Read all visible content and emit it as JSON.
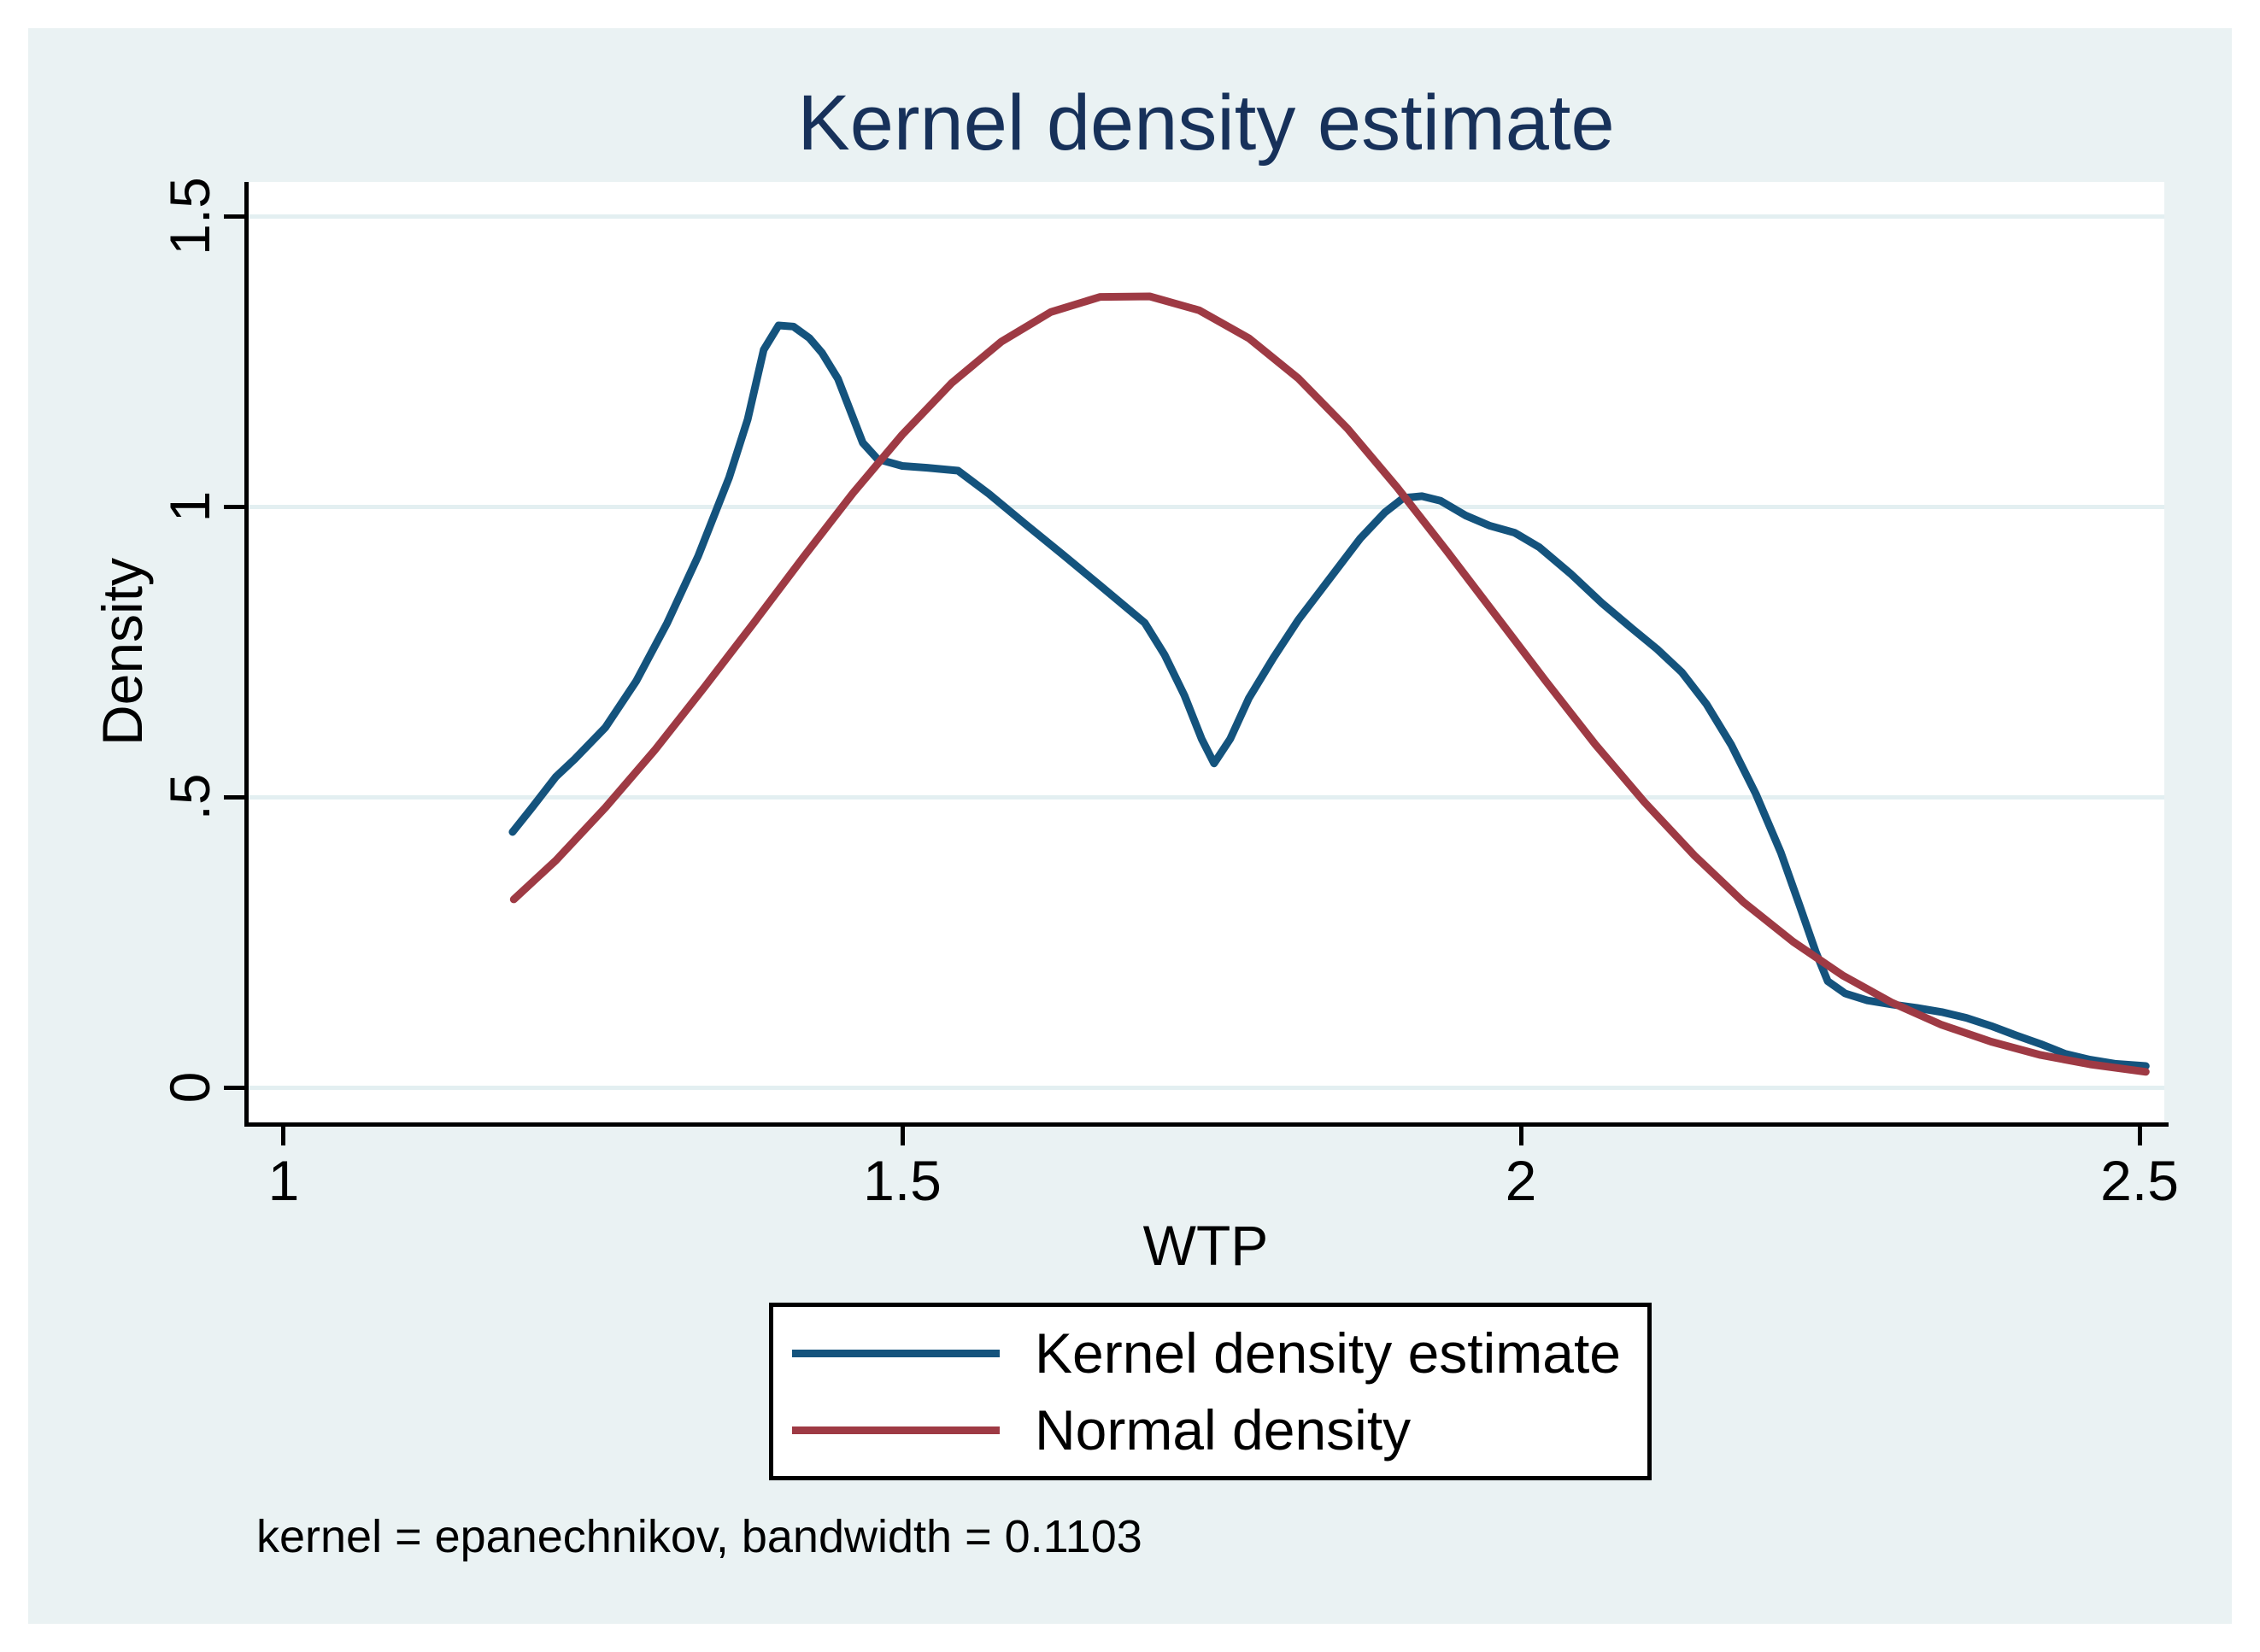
{
  "figure": {
    "title": "Kernel density estimate",
    "note": "kernel = epanechnikov, bandwidth = 0.1103",
    "colors": {
      "figure_background": "#eaf2f3",
      "plot_background": "#ffffff",
      "gridline": "#e3eff1",
      "axis": "#000000",
      "title_text": "#17315a",
      "kernel_line": "#14537d",
      "normal_line": "#9e3a44",
      "legend_border": "#000000",
      "legend_background": "#ffffff"
    }
  },
  "chart_data": {
    "type": "line",
    "title": "Kernel density estimate",
    "xlabel": "WTP",
    "ylabel": "Density",
    "xlim": [
      0.971,
      2.52
    ],
    "ylim": [
      -0.06,
      1.559
    ],
    "x_ticks": [
      1,
      1.5,
      2,
      2.5
    ],
    "x_tick_labels": [
      "1",
      "1.5",
      "2",
      "2.5"
    ],
    "y_ticks": [
      0,
      0.5,
      1,
      1.5
    ],
    "y_tick_labels": [
      "0",
      ".5",
      "1",
      "1.5"
    ],
    "grid": "horizontal gridlines at y ticks",
    "legend_position": "below plot, boxed",
    "note": "kernel = epanechnikov, bandwidth = 0.1103",
    "series": [
      {
        "name": "Kernel density estimate",
        "color": "#14537d",
        "points": [
          [
            1.185,
            0.44
          ],
          [
            1.2,
            0.48
          ],
          [
            1.22,
            0.535
          ],
          [
            1.235,
            0.565
          ],
          [
            1.26,
            0.62
          ],
          [
            1.285,
            0.7
          ],
          [
            1.31,
            0.8
          ],
          [
            1.335,
            0.915
          ],
          [
            1.36,
            1.05
          ],
          [
            1.375,
            1.15
          ],
          [
            1.388,
            1.27
          ],
          [
            1.4,
            1.312
          ],
          [
            1.412,
            1.31
          ],
          [
            1.425,
            1.29
          ],
          [
            1.435,
            1.265
          ],
          [
            1.448,
            1.22
          ],
          [
            1.458,
            1.165
          ],
          [
            1.468,
            1.11
          ],
          [
            1.48,
            1.082
          ],
          [
            1.5,
            1.07
          ],
          [
            1.52,
            1.067
          ],
          [
            1.545,
            1.062
          ],
          [
            1.57,
            1.022
          ],
          [
            1.6,
            0.969
          ],
          [
            1.63,
            0.917
          ],
          [
            1.66,
            0.864
          ],
          [
            1.696,
            0.8
          ],
          [
            1.712,
            0.745
          ],
          [
            1.728,
            0.675
          ],
          [
            1.742,
            0.6
          ],
          [
            1.752,
            0.558
          ],
          [
            1.765,
            0.6
          ],
          [
            1.78,
            0.67
          ],
          [
            1.8,
            0.74
          ],
          [
            1.82,
            0.805
          ],
          [
            1.845,
            0.875
          ],
          [
            1.87,
            0.945
          ],
          [
            1.89,
            0.99
          ],
          [
            1.905,
            1.015
          ],
          [
            1.92,
            1.018
          ],
          [
            1.935,
            1.01
          ],
          [
            1.955,
            0.985
          ],
          [
            1.975,
            0.967
          ],
          [
            1.995,
            0.955
          ],
          [
            2.015,
            0.93
          ],
          [
            2.04,
            0.885
          ],
          [
            2.065,
            0.835
          ],
          [
            2.09,
            0.79
          ],
          [
            2.11,
            0.755
          ],
          [
            2.13,
            0.715
          ],
          [
            2.15,
            0.66
          ],
          [
            2.17,
            0.59
          ],
          [
            2.19,
            0.505
          ],
          [
            2.21,
            0.405
          ],
          [
            2.225,
            0.315
          ],
          [
            2.238,
            0.235
          ],
          [
            2.248,
            0.183
          ],
          [
            2.262,
            0.162
          ],
          [
            2.28,
            0.15
          ],
          [
            2.3,
            0.143
          ],
          [
            2.32,
            0.137
          ],
          [
            2.34,
            0.13
          ],
          [
            2.36,
            0.12
          ],
          [
            2.38,
            0.106
          ],
          [
            2.4,
            0.09
          ],
          [
            2.42,
            0.075
          ],
          [
            2.44,
            0.058
          ],
          [
            2.46,
            0.048
          ],
          [
            2.48,
            0.041
          ],
          [
            2.505,
            0.037
          ]
        ]
      },
      {
        "name": "Normal density",
        "color": "#9e3a44",
        "points": [
          [
            1.186,
            0.324
          ],
          [
            1.22,
            0.391
          ],
          [
            1.26,
            0.482
          ],
          [
            1.3,
            0.581
          ],
          [
            1.34,
            0.689
          ],
          [
            1.38,
            0.8
          ],
          [
            1.42,
            0.913
          ],
          [
            1.46,
            1.023
          ],
          [
            1.5,
            1.124
          ],
          [
            1.54,
            1.213
          ],
          [
            1.58,
            1.284
          ],
          [
            1.62,
            1.335
          ],
          [
            1.66,
            1.361
          ],
          [
            1.7,
            1.362
          ],
          [
            1.74,
            1.338
          ],
          [
            1.78,
            1.29
          ],
          [
            1.82,
            1.221
          ],
          [
            1.86,
            1.134
          ],
          [
            1.9,
            1.033
          ],
          [
            1.94,
            0.924
          ],
          [
            1.98,
            0.812
          ],
          [
            2.02,
            0.7
          ],
          [
            2.06,
            0.591
          ],
          [
            2.1,
            0.491
          ],
          [
            2.14,
            0.4
          ],
          [
            2.18,
            0.319
          ],
          [
            2.22,
            0.251
          ],
          [
            2.26,
            0.193
          ],
          [
            2.3,
            0.146
          ],
          [
            2.34,
            0.108
          ],
          [
            2.38,
            0.079
          ],
          [
            2.42,
            0.056
          ],
          [
            2.46,
            0.04
          ],
          [
            2.505,
            0.027
          ]
        ]
      }
    ]
  },
  "legend": {
    "items": [
      {
        "label": "Kernel density estimate"
      },
      {
        "label": "Normal density"
      }
    ]
  }
}
